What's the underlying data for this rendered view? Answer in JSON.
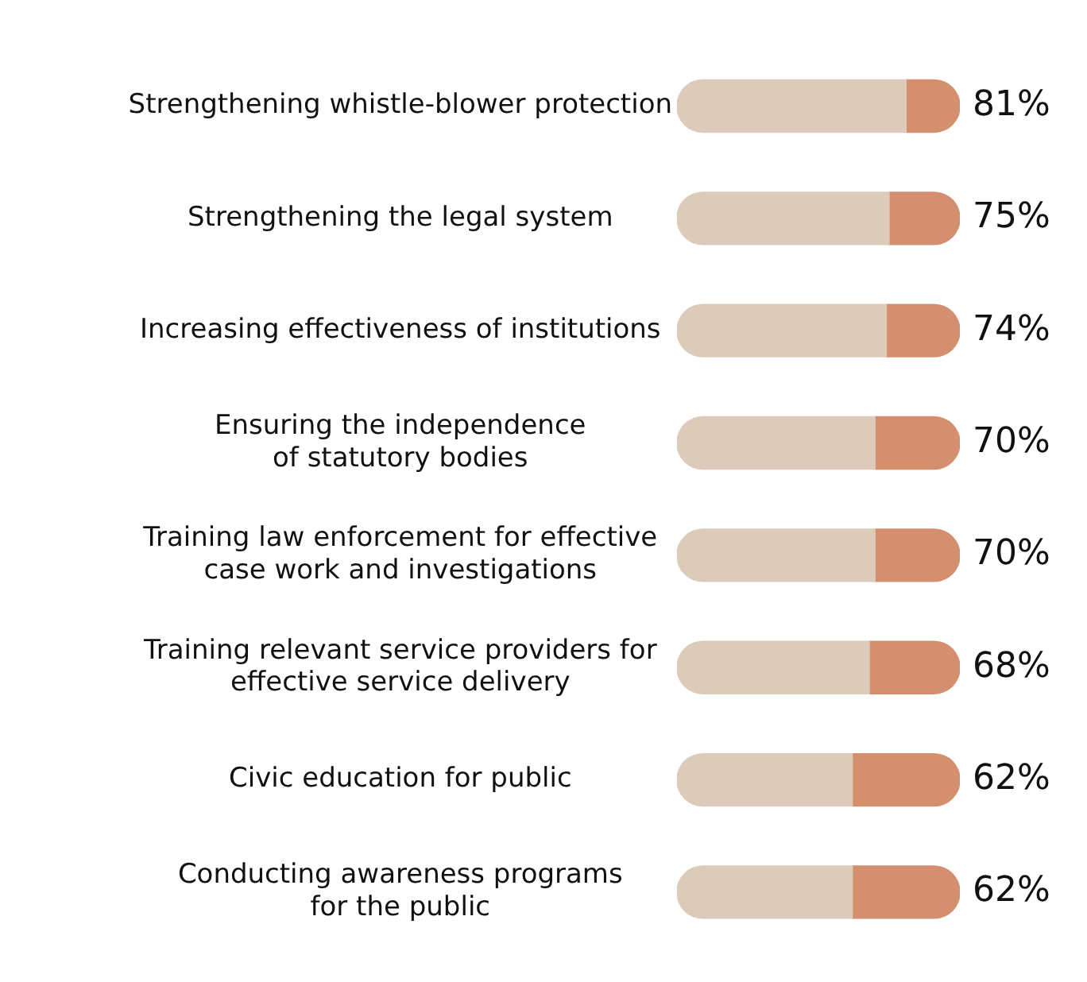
{
  "chart_data": {
    "type": "bar",
    "orientation": "horizontal",
    "stacked": true,
    "categories": [
      "Strengthening whistle-blower protection",
      "Strengthening the legal system",
      "Increasing effectiveness of institutions",
      "Ensuring the independence\nof statutory bodies",
      "Training law enforcement for effective\ncase work and investigations",
      "Training relevant service providers for\neffective service delivery",
      "Civic education for public",
      "Conducting awareness programs\nfor the public"
    ],
    "series": [
      {
        "color": "#dccbb8",
        "values": [
          81,
          75,
          74,
          70,
          70,
          68,
          62,
          62
        ],
        "value_labels": [
          "81%",
          "75%",
          "74%",
          "70%",
          "70%",
          "68%",
          "62%",
          "62%"
        ]
      },
      {
        "color": "#d4906e",
        "values": [
          19,
          25,
          26,
          30,
          30,
          32,
          38,
          38
        ]
      }
    ],
    "xlim": [
      0,
      100
    ],
    "tick_labels": "y",
    "grid": false,
    "legend": false
  }
}
